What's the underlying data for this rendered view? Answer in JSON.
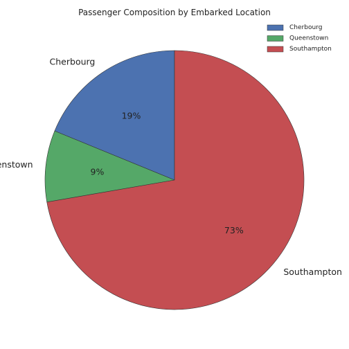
{
  "chart_data": {
    "type": "pie",
    "title": "Passenger Composition by Embarked Location",
    "categories": [
      "Cherbourg",
      "Queenstown",
      "Southampton"
    ],
    "values": [
      19,
      9,
      73
    ],
    "percent_labels": [
      "19%",
      "9%",
      "73%"
    ],
    "colors": [
      "#4c72b0",
      "#55a868",
      "#c44e52"
    ],
    "start_angle_deg": 90,
    "direction": "counterclockwise",
    "legend": {
      "placement": "top-right",
      "entries": [
        "Cherbourg",
        "Queenstown",
        "Southampton"
      ]
    }
  }
}
